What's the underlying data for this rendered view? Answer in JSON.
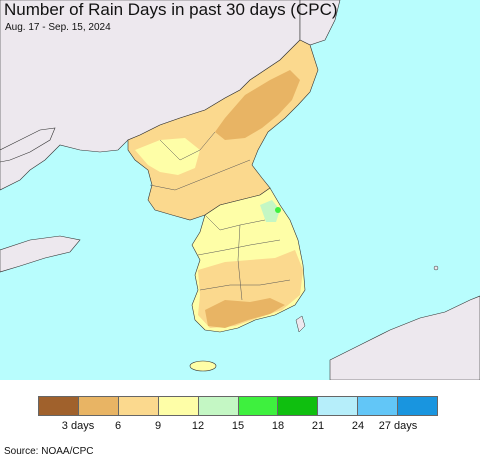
{
  "header": {
    "title": "Number of Rain Days in past 30 days (CPC)",
    "subtitle": "Aug. 17 - Sep. 15, 2024"
  },
  "legend": {
    "colors": [
      "#a0612c",
      "#e8b464",
      "#fbd98e",
      "#fefea7",
      "#c4f7c4",
      "#3ef03e",
      "#0fbf0f",
      "#b6eefa",
      "#62c6f7",
      "#1995df"
    ],
    "labels": [
      "3 days",
      "6",
      "9",
      "12",
      "15",
      "18",
      "21",
      "24",
      "27 days"
    ]
  },
  "colors": {
    "sea": "#b8fdfd",
    "land_nodata": "#ede8ee",
    "boundary": "#333333"
  },
  "footer": {
    "source": "Source: NOAA/CPC"
  }
}
